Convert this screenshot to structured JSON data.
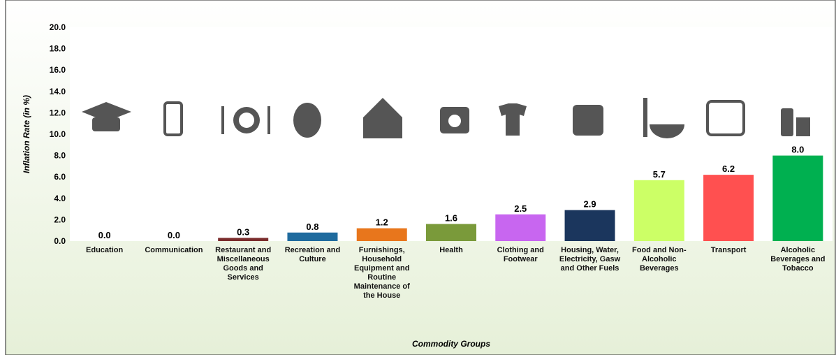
{
  "chart_data": {
    "type": "bar",
    "x_label": "Commodity Groups",
    "y_label": "Inflation Rate (in %)",
    "categories": [
      "Education",
      "Communication",
      "Restaurant and Miscellaneous Goods and Services",
      "Recreation and Culture",
      "Furnishings, Household Equipment and Routine Maintenance of the House",
      "Health",
      "Clothing and Footwear",
      "Housing, Water, Electricity, Gasw and Other Fuels",
      "Food and Non-Alcoholic Beverages",
      "Transport",
      "Alcoholic Beverages and Tobacco"
    ],
    "values": [
      0,
      0,
      0.3,
      0.8,
      1.2,
      1.6,
      2.5,
      2.9,
      5.7,
      6.2,
      8
    ],
    "value_labels": [
      "0.0",
      "0.0",
      "0.3",
      "0.8",
      "1.2",
      "1.6",
      "2.5",
      "2.9",
      "5.7",
      "6.2",
      "8.0"
    ],
    "colors": [
      "#7f7f7f",
      "#7f7f7f",
      "#7b2c2c",
      "#1f6b9e",
      "#e8761c",
      "#7a9a3a",
      "#c866f0",
      "#1b365d",
      "#ccff66",
      "#ff5050",
      "#00b050"
    ],
    "ylim": [
      0,
      20
    ],
    "yticks": [
      {
        "value": 0,
        "label": "0.0"
      },
      {
        "value": 2,
        "label": "2.0"
      },
      {
        "value": 4,
        "label": "4.0"
      },
      {
        "value": 6,
        "label": "6.0"
      },
      {
        "value": 8,
        "label": "8.0"
      },
      {
        "value": 10,
        "label": "10.0"
      },
      {
        "value": 12,
        "label": "12.0"
      },
      {
        "value": 14,
        "label": "14.0"
      },
      {
        "value": 16,
        "label": "16.0"
      },
      {
        "value": 18,
        "label": "18.0"
      },
      {
        "value": 20,
        "label": "20.0"
      }
    ],
    "grid": false
  }
}
